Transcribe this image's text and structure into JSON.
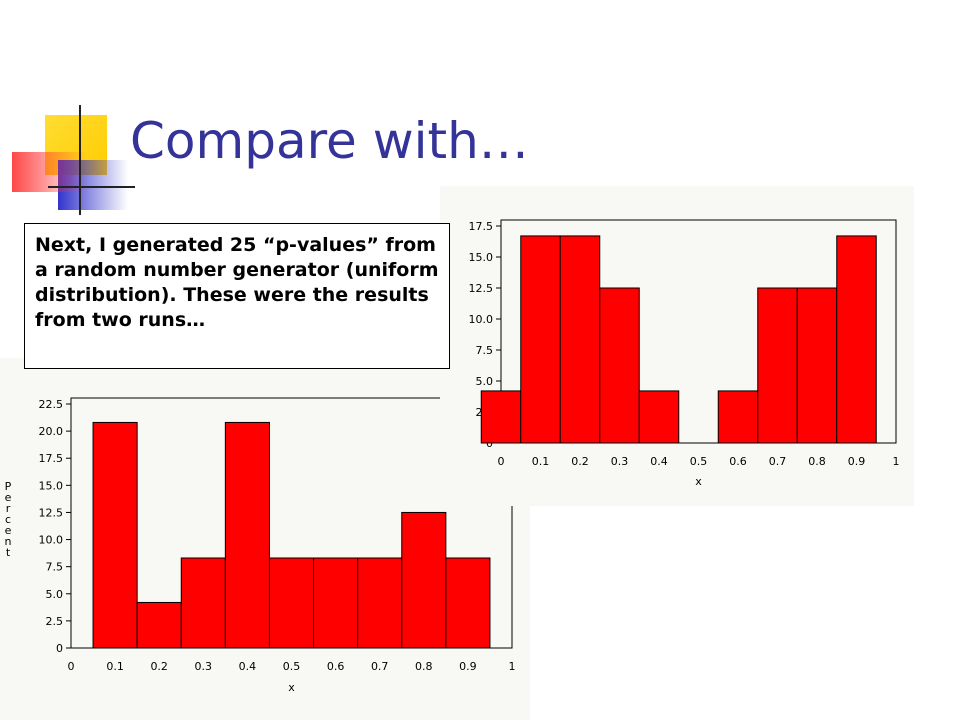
{
  "slide": {
    "title": "Compare with…",
    "callout_text": "Next, I generated 25 “p-values” from a random number generator (uniform distribution). These were the results from two runs…"
  },
  "colors": {
    "title": "#333399",
    "bar_fill": "#ff0000",
    "bar_stroke": "#000000",
    "panel_background": "#f8f8f4",
    "logo_yellow": "#ffcc00",
    "logo_blue": "#3333cc",
    "logo_red": "#ff3333"
  },
  "chart_data": [
    {
      "id": "run-1",
      "type": "bar",
      "histogram": true,
      "xlabel": "x",
      "ylabel": "Percent",
      "xlim": [
        0,
        1
      ],
      "ylim": [
        0,
        22.5
      ],
      "xticks": [
        "0",
        "0.1",
        "0.2",
        "0.3",
        "0.4",
        "0.5",
        "0.6",
        "0.7",
        "0.8",
        "0.9",
        "1"
      ],
      "yticks": [
        "0",
        "2.5",
        "5.0",
        "7.5",
        "10.0",
        "12.5",
        "15.0",
        "17.5",
        "20.0",
        "22.5"
      ],
      "bin_midpoints": [
        0.1,
        0.2,
        0.3,
        0.4,
        0.5,
        0.6,
        0.7,
        0.8,
        0.9
      ],
      "values": [
        20.8,
        4.2,
        8.3,
        20.8,
        8.3,
        8.3,
        8.3,
        12.5,
        8.3
      ]
    },
    {
      "id": "run-2",
      "type": "bar",
      "histogram": true,
      "xlabel": "x",
      "ylabel": "",
      "xlim": [
        0,
        1
      ],
      "ylim": [
        0,
        17.5
      ],
      "xticks": [
        "0",
        "0.1",
        "0.2",
        "0.3",
        "0.4",
        "0.5",
        "0.6",
        "0.7",
        "0.8",
        "0.9",
        "1"
      ],
      "yticks": [
        "0",
        "2.5",
        "5.0",
        "7.5",
        "10.0",
        "12.5",
        "15.0",
        "17.5"
      ],
      "bin_midpoints": [
        0,
        0.1,
        0.2,
        0.3,
        0.4,
        0.5,
        0.6,
        0.7,
        0.8,
        0.9
      ],
      "values": [
        4.2,
        16.7,
        16.7,
        12.5,
        4.2,
        0,
        4.2,
        12.5,
        12.5,
        16.7
      ]
    }
  ]
}
